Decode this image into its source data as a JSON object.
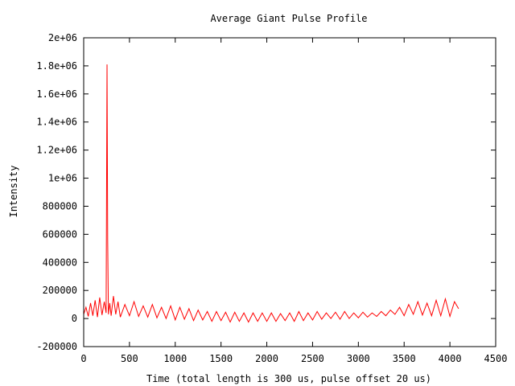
{
  "chart_data": {
    "type": "line",
    "title": "Average Giant Pulse Profile",
    "xlabel": "Time (total length is 300 us, pulse offset 20 us)",
    "ylabel": "Intensity",
    "xlim": [
      0,
      4500
    ],
    "ylim": [
      -200000,
      2000000
    ],
    "x_ticks": [
      0,
      500,
      1000,
      1500,
      2000,
      2500,
      3000,
      3500,
      4000,
      4500
    ],
    "x_tick_labels": [
      "0",
      "500",
      "1000",
      "1500",
      "2000",
      "2500",
      "3000",
      "3500",
      "4000",
      "4500"
    ],
    "y_ticks": [
      -200000,
      0,
      200000,
      400000,
      600000,
      800000,
      1000000,
      1200000,
      1400000,
      1600000,
      1800000,
      2000000
    ],
    "y_tick_labels": [
      "-200000",
      "0",
      "200000",
      "400000",
      "600000",
      "800000",
      "1e+06",
      "1.2e+06",
      "1.4e+06",
      "1.6e+06",
      "1.8e+06",
      "2e+06"
    ],
    "grid": false,
    "legend": "none",
    "series": [
      {
        "color": "#ff0000",
        "x": [
          0,
          25,
          50,
          75,
          100,
          125,
          150,
          175,
          200,
          225,
          245,
          255,
          262,
          270,
          285,
          300,
          325,
          350,
          375,
          400,
          450,
          500,
          550,
          600,
          650,
          700,
          750,
          800,
          850,
          900,
          950,
          1000,
          1050,
          1100,
          1150,
          1200,
          1250,
          1300,
          1350,
          1400,
          1450,
          1500,
          1550,
          1600,
          1650,
          1700,
          1750,
          1800,
          1850,
          1900,
          1950,
          2000,
          2050,
          2100,
          2150,
          2200,
          2250,
          2300,
          2350,
          2400,
          2450,
          2500,
          2550,
          2600,
          2650,
          2700,
          2750,
          2800,
          2850,
          2900,
          2950,
          3000,
          3050,
          3100,
          3150,
          3200,
          3250,
          3300,
          3350,
          3400,
          3450,
          3500,
          3550,
          3600,
          3650,
          3700,
          3750,
          3800,
          3850,
          3900,
          3950,
          4000,
          4050,
          4095
        ],
        "values": [
          30000,
          80000,
          15000,
          110000,
          20000,
          130000,
          10000,
          150000,
          25000,
          120000,
          40000,
          1810000,
          560000,
          30000,
          110000,
          20000,
          160000,
          30000,
          120000,
          10000,
          100000,
          20000,
          120000,
          15000,
          90000,
          10000,
          100000,
          5000,
          80000,
          0,
          90000,
          -10000,
          80000,
          -5000,
          70000,
          -15000,
          60000,
          -10000,
          50000,
          -20000,
          50000,
          -15000,
          45000,
          -25000,
          45000,
          -20000,
          40000,
          -25000,
          40000,
          -20000,
          40000,
          -20000,
          40000,
          -20000,
          35000,
          -15000,
          40000,
          -20000,
          50000,
          -15000,
          40000,
          -10000,
          50000,
          -5000,
          40000,
          0,
          45000,
          -5000,
          50000,
          0,
          40000,
          5000,
          45000,
          10000,
          40000,
          15000,
          50000,
          20000,
          60000,
          30000,
          80000,
          20000,
          100000,
          30000,
          120000,
          25000,
          110000,
          20000,
          130000,
          20000,
          140000,
          15000,
          120000,
          70000
        ]
      }
    ]
  }
}
